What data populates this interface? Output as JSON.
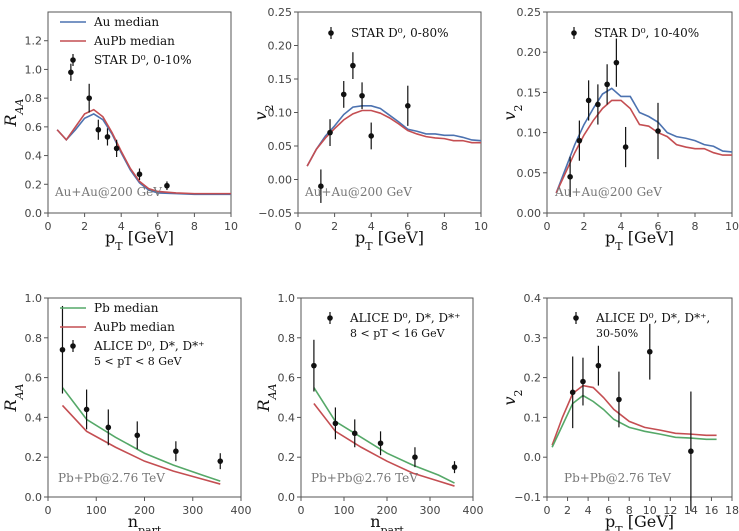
{
  "colors": {
    "au": "#4c72b0",
    "aupb": "#c44e52",
    "pb": "#55a868",
    "data": "#111111",
    "axes": "#555555"
  },
  "chart_data": [
    {
      "type": "line",
      "panel": "a",
      "xlabel": "p_T [GeV]",
      "ylabel": "R_AA",
      "xlim": [
        0,
        10
      ],
      "ylim": [
        0,
        1.4
      ],
      "xticks": [
        "0",
        "2",
        "4",
        "6",
        "8",
        "10"
      ],
      "yticks": [
        "0.0",
        "0.2",
        "0.4",
        "0.6",
        "0.8",
        "1.0",
        "1.2"
      ],
      "annotation": "Au+Au@200 GeV",
      "legend_position": "top-left",
      "series": [
        {
          "name": "Au median",
          "color": "au",
          "x": [
            0.5,
            1,
            1.5,
            2,
            2.5,
            3,
            3.5,
            4,
            4.5,
            5,
            5.5,
            6,
            7,
            8,
            9,
            10
          ],
          "y": [
            0.58,
            0.51,
            0.58,
            0.66,
            0.69,
            0.65,
            0.55,
            0.42,
            0.3,
            0.21,
            0.16,
            0.14,
            0.135,
            0.13,
            0.13,
            0.13
          ]
        },
        {
          "name": "AuPb median",
          "color": "aupb",
          "x": [
            0.5,
            1,
            1.5,
            2,
            2.5,
            3,
            3.5,
            4,
            4.5,
            5,
            5.5,
            6,
            7,
            8,
            9,
            10
          ],
          "y": [
            0.58,
            0.51,
            0.6,
            0.69,
            0.72,
            0.67,
            0.56,
            0.43,
            0.31,
            0.22,
            0.17,
            0.15,
            0.14,
            0.135,
            0.135,
            0.135
          ]
        }
      ],
      "points": {
        "label": "STAR D⁰, 0-10%",
        "x": [
          1.25,
          2.25,
          2.75,
          3.25,
          3.75,
          5.0,
          6.5
        ],
        "y": [
          0.98,
          0.8,
          0.58,
          0.53,
          0.45,
          0.27,
          0.19
        ],
        "err": [
          0.06,
          0.1,
          0.07,
          0.06,
          0.06,
          0.04,
          0.03
        ]
      }
    },
    {
      "type": "line",
      "panel": "b",
      "xlabel": "p_T [GeV]",
      "ylabel": "v_2",
      "xlim": [
        0,
        10
      ],
      "ylim": [
        -0.05,
        0.25
      ],
      "xticks": [
        "0",
        "2",
        "4",
        "6",
        "8",
        "10"
      ],
      "yticks": [
        "−0.05",
        "0.00",
        "0.05",
        "0.10",
        "0.15",
        "0.20",
        "0.25"
      ],
      "annotation": "Au+Au@200 GeV",
      "series": [
        {
          "name": "",
          "color": "au",
          "x": [
            0.5,
            1,
            1.5,
            2,
            2.5,
            3,
            3.5,
            4,
            4.5,
            5,
            5.5,
            6,
            6.5,
            7,
            7.5,
            8,
            8.5,
            9,
            9.5,
            10
          ],
          "y": [
            0.02,
            0.045,
            0.065,
            0.08,
            0.097,
            0.108,
            0.11,
            0.11,
            0.106,
            0.096,
            0.086,
            0.075,
            0.072,
            0.068,
            0.068,
            0.066,
            0.066,
            0.063,
            0.059,
            0.058
          ]
        },
        {
          "name": "",
          "color": "aupb",
          "x": [
            0.5,
            1,
            1.5,
            2,
            2.5,
            3,
            3.5,
            4,
            4.5,
            5,
            5.5,
            6,
            6.5,
            7,
            7.5,
            8,
            8.5,
            9,
            9.5,
            10
          ],
          "y": [
            0.02,
            0.045,
            0.062,
            0.076,
            0.089,
            0.098,
            0.103,
            0.103,
            0.099,
            0.092,
            0.083,
            0.073,
            0.068,
            0.064,
            0.062,
            0.061,
            0.058,
            0.058,
            0.055,
            0.055
          ]
        }
      ],
      "points": {
        "label": "STAR D⁰, 0-80%",
        "x": [
          1.25,
          1.75,
          2.5,
          3.0,
          3.5,
          4.0,
          6.0
        ],
        "y": [
          -0.01,
          0.07,
          0.127,
          0.17,
          0.125,
          0.065,
          0.11
        ],
        "err": [
          0.025,
          0.02,
          0.02,
          0.02,
          0.02,
          0.02,
          0.03
        ]
      }
    },
    {
      "type": "line",
      "panel": "c",
      "xlabel": "p_T [GeV]",
      "ylabel": "v_2",
      "xlim": [
        0,
        10
      ],
      "ylim": [
        0,
        0.25
      ],
      "xticks": [
        "0",
        "2",
        "4",
        "6",
        "8",
        "10"
      ],
      "yticks": [
        "0.00",
        "0.05",
        "0.10",
        "0.15",
        "0.20",
        "0.25"
      ],
      "annotation": "Au+Au@200 GeV",
      "series": [
        {
          "name": "",
          "color": "au",
          "x": [
            0.5,
            1,
            1.5,
            2,
            2.5,
            3,
            3.5,
            4,
            4.5,
            5,
            5.5,
            6,
            6.5,
            7,
            7.5,
            8,
            8.5,
            9,
            9.5,
            10
          ],
          "y": [
            0.025,
            0.055,
            0.085,
            0.11,
            0.13,
            0.148,
            0.155,
            0.145,
            0.145,
            0.125,
            0.12,
            0.113,
            0.1,
            0.095,
            0.093,
            0.09,
            0.085,
            0.083,
            0.077,
            0.076
          ]
        },
        {
          "name": "",
          "color": "aupb",
          "x": [
            0.5,
            1,
            1.5,
            2,
            2.5,
            3,
            3.5,
            4,
            4.5,
            5,
            5.5,
            6,
            6.5,
            7,
            7.5,
            8,
            8.5,
            9,
            9.5,
            10
          ],
          "y": [
            0.025,
            0.05,
            0.075,
            0.097,
            0.115,
            0.13,
            0.14,
            0.14,
            0.13,
            0.11,
            0.108,
            0.1,
            0.095,
            0.085,
            0.082,
            0.08,
            0.08,
            0.075,
            0.072,
            0.072
          ]
        }
      ],
      "points": {
        "label": "STAR D⁰, 10-40%",
        "x": [
          1.25,
          1.75,
          2.25,
          2.75,
          3.25,
          3.75,
          4.25,
          6.0
        ],
        "y": [
          0.045,
          0.09,
          0.14,
          0.135,
          0.16,
          0.187,
          0.082,
          0.102
        ],
        "err": [
          0.025,
          0.025,
          0.025,
          0.025,
          0.025,
          0.03,
          0.025,
          0.035
        ]
      }
    },
    {
      "type": "line",
      "panel": "d",
      "xlabel": "n_part",
      "ylabel": "R_AA",
      "xlim": [
        0,
        400
      ],
      "ylim": [
        0,
        1.0
      ],
      "xticks": [
        "0",
        "100",
        "200",
        "300",
        "400"
      ],
      "yticks": [
        "0.0",
        "0.2",
        "0.4",
        "0.6",
        "0.8",
        "1.0"
      ],
      "annotation": "Pb+Pb@2.76 TeV",
      "legend_position": "top-left",
      "series": [
        {
          "name": "Pb median",
          "color": "pb",
          "x": [
            30,
            80,
            140,
            200,
            260,
            320,
            357
          ],
          "y": [
            0.55,
            0.39,
            0.3,
            0.22,
            0.16,
            0.11,
            0.08
          ]
        },
        {
          "name": "AuPb median",
          "color": "aupb",
          "x": [
            30,
            80,
            140,
            200,
            260,
            320,
            357
          ],
          "y": [
            0.46,
            0.33,
            0.25,
            0.18,
            0.13,
            0.09,
            0.065
          ]
        }
      ],
      "points": {
        "label": "ALICE D⁰, D*, D*⁺",
        "sublabel": "5 < pT < 8 GeV",
        "x": [
          30,
          80,
          125,
          185,
          265,
          357
        ],
        "y": [
          0.74,
          0.44,
          0.35,
          0.31,
          0.23,
          0.18
        ],
        "err": [
          0.22,
          0.1,
          0.09,
          0.07,
          0.05,
          0.04
        ]
      }
    },
    {
      "type": "line",
      "panel": "e",
      "xlabel": "n_part",
      "ylabel": "R_AA",
      "xlim": [
        0,
        400
      ],
      "ylim": [
        0,
        1.0
      ],
      "xticks": [
        "0",
        "100",
        "200",
        "300",
        "400"
      ],
      "yticks": [
        "0.0",
        "0.2",
        "0.4",
        "0.6",
        "0.8",
        "1.0"
      ],
      "annotation": "Pb+Pb@2.76 TeV",
      "series": [
        {
          "name": "",
          "color": "pb",
          "x": [
            30,
            80,
            140,
            200,
            260,
            320,
            357
          ],
          "y": [
            0.55,
            0.38,
            0.3,
            0.22,
            0.16,
            0.11,
            0.07
          ]
        },
        {
          "name": "",
          "color": "aupb",
          "x": [
            30,
            80,
            140,
            200,
            260,
            320,
            357
          ],
          "y": [
            0.47,
            0.33,
            0.25,
            0.18,
            0.12,
            0.08,
            0.055
          ]
        }
      ],
      "points": {
        "label": "ALICE D⁰, D*, D*⁺",
        "sublabel": "8 < pT < 16 GeV",
        "x": [
          30,
          80,
          125,
          185,
          265,
          357
        ],
        "y": [
          0.66,
          0.37,
          0.32,
          0.27,
          0.2,
          0.15
        ],
        "err": [
          0.13,
          0.08,
          0.07,
          0.06,
          0.05,
          0.03
        ]
      }
    },
    {
      "type": "line",
      "panel": "f",
      "xlabel": "p_T [GeV]",
      "ylabel": "v_2",
      "xlim": [
        0,
        18
      ],
      "ylim": [
        -0.1,
        0.4
      ],
      "xticks": [
        "0",
        "2",
        "4",
        "6",
        "8",
        "10",
        "12",
        "14",
        "16",
        "18"
      ],
      "yticks": [
        "−0.1",
        "0.0",
        "0.1",
        "0.2",
        "0.3",
        "0.4"
      ],
      "annotation": "Pb+Pb@2.76 TeV",
      "series": [
        {
          "name": "",
          "color": "aupb",
          "x": [
            0.5,
            1.5,
            2.5,
            3.5,
            4.5,
            5.5,
            6.5,
            8,
            9.5,
            11,
            12.5,
            14,
            15.5,
            16.5
          ],
          "y": [
            0.03,
            0.1,
            0.16,
            0.18,
            0.175,
            0.15,
            0.12,
            0.09,
            0.075,
            0.068,
            0.06,
            0.058,
            0.055,
            0.055
          ]
        },
        {
          "name": "",
          "color": "pb",
          "x": [
            0.5,
            1.5,
            2.5,
            3.5,
            4.5,
            5.5,
            6.5,
            8,
            9.5,
            11,
            12.5,
            14,
            15.5,
            16.5
          ],
          "y": [
            0.025,
            0.08,
            0.135,
            0.155,
            0.14,
            0.12,
            0.095,
            0.075,
            0.065,
            0.058,
            0.05,
            0.048,
            0.045,
            0.045
          ]
        }
      ],
      "points": {
        "label": "ALICE D⁰, D*, D*⁺,",
        "sublabel": "30-50%",
        "x": [
          2.5,
          3.5,
          5.0,
          7.0,
          10.0,
          14.0
        ],
        "y": [
          0.163,
          0.19,
          0.23,
          0.145,
          0.265,
          0.015
        ],
        "err": [
          0.09,
          0.06,
          0.05,
          0.07,
          0.07,
          0.15
        ]
      }
    }
  ]
}
